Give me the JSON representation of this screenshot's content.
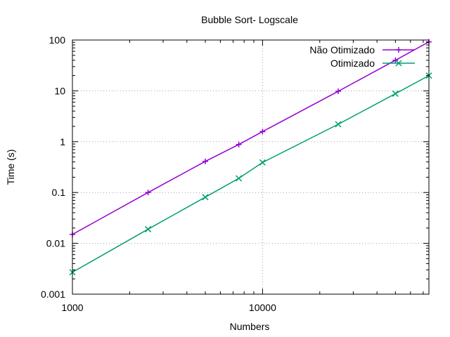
{
  "chart_data": {
    "type": "line",
    "title": "Bubble Sort- Logscale",
    "xlabel": "Numbers",
    "ylabel": "Time (s)",
    "x_scale": "log",
    "y_scale": "log",
    "xlim": [
      1000,
      75000
    ],
    "ylim": [
      0.001,
      100
    ],
    "grid": true,
    "legend_position": "top-right",
    "x_ticks": [
      {
        "value": 1000,
        "label": "1000"
      },
      {
        "value": 10000,
        "label": "10000"
      }
    ],
    "y_ticks": [
      {
        "value": 0.001,
        "label": "0.001"
      },
      {
        "value": 0.01,
        "label": "0.01"
      },
      {
        "value": 0.1,
        "label": "0.1"
      },
      {
        "value": 1,
        "label": "1"
      },
      {
        "value": 10,
        "label": "10"
      },
      {
        "value": 100,
        "label": "100"
      }
    ],
    "series": [
      {
        "name": "Não Otimizado",
        "color": "#9400d3",
        "marker": "plus",
        "x": [
          1000,
          2500,
          5000,
          7500,
          10000,
          25000,
          50000,
          75000
        ],
        "y": [
          0.015,
          0.1,
          0.41,
          0.88,
          1.58,
          9.8,
          40,
          92
        ]
      },
      {
        "name": "Otimizado",
        "color": "#009e73",
        "marker": "cross",
        "x": [
          1000,
          2500,
          5000,
          7500,
          10000,
          25000,
          50000,
          75000
        ],
        "y": [
          0.0027,
          0.019,
          0.081,
          0.19,
          0.39,
          2.2,
          8.8,
          20
        ]
      }
    ]
  }
}
